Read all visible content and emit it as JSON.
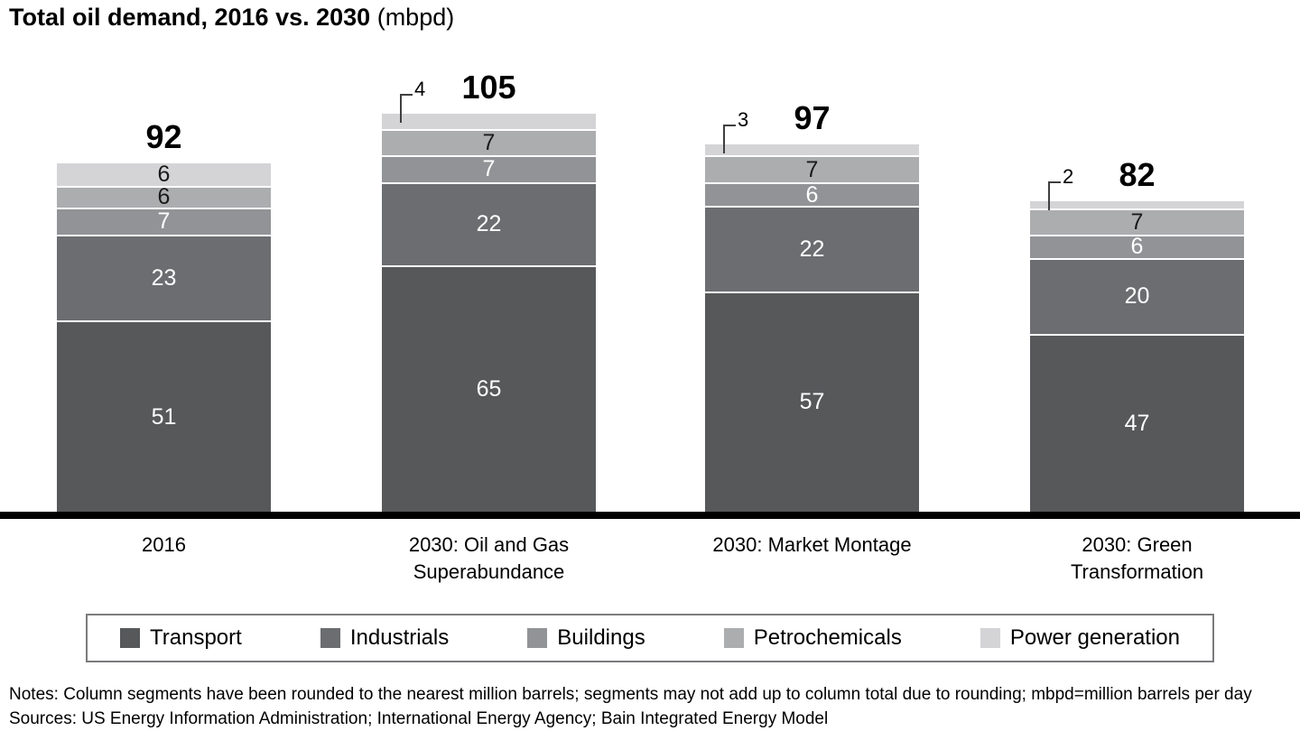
{
  "chart_data": {
    "type": "bar",
    "stacked": true,
    "title": "Total oil demand, 2016 vs. 2030",
    "unit_label": "(mbpd)",
    "categories": [
      "2016",
      "2030: Oil and Gas Superabundance",
      "2030: Market Montage",
      "2030: Green Transformation"
    ],
    "series": [
      {
        "name": "Transport",
        "values": [
          51,
          65,
          57,
          47
        ]
      },
      {
        "name": "Industrials",
        "values": [
          23,
          22,
          22,
          20
        ]
      },
      {
        "name": "Buildings",
        "values": [
          7,
          7,
          6,
          6
        ]
      },
      {
        "name": "Petrochemicals",
        "values": [
          6,
          7,
          7,
          7
        ]
      },
      {
        "name": "Power generation",
        "values": [
          6,
          4,
          3,
          2
        ]
      }
    ],
    "totals": [
      92,
      105,
      97,
      82
    ],
    "ylim": [
      0,
      110
    ],
    "grid": false,
    "legend_position": "bottom"
  },
  "bars": [
    {
      "category": "2016",
      "label_lines": [
        "2016"
      ],
      "total_label": "92",
      "callout": null
    },
    {
      "category": "2030: Oil and Gas Superabundance",
      "label_lines": [
        "2030: Oil and Gas",
        "Superabundance"
      ],
      "total_label": "105",
      "callout": "4"
    },
    {
      "category": "2030: Market Montage",
      "label_lines": [
        "2030: Market Montage"
      ],
      "total_label": "97",
      "callout": "3"
    },
    {
      "category": "2030: Green Transformation",
      "label_lines": [
        "2030: Green",
        "Transformation"
      ],
      "total_label": "82",
      "callout": "2"
    }
  ],
  "style": {
    "series_colors": [
      "#57585a",
      "#6c6d70",
      "#929396",
      "#acadaf",
      "#d4d4d6"
    ],
    "series_label_colors": [
      "#ffffff",
      "#ffffff",
      "#ffffff",
      "#1a1a1a",
      "#1a1a1a"
    ],
    "axis_color": "#000000",
    "callout_line_color": "#3f3f3f",
    "legend_border_color": "#7a7b7d",
    "background": "#ffffff"
  },
  "footer": {
    "notes": "Notes: Column segments have been rounded to the nearest million barrels; segments may not add up to column total due to rounding; mbpd=million barrels per day",
    "sources": "Sources: US Energy Information Administration; International Energy Agency; Bain Integrated Energy Model"
  }
}
